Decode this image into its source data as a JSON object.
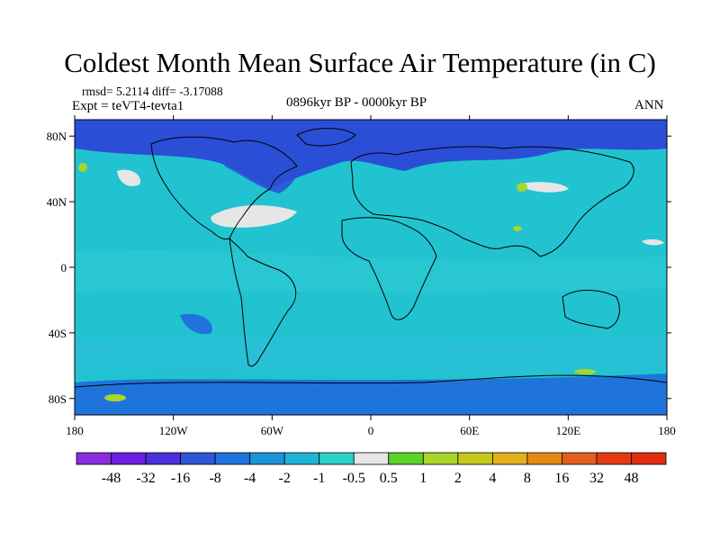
{
  "figure": {
    "title": "Coldest Month Mean Surface Air Temperature (in C)",
    "rmsd_line": "rmsd= 5.2114 diff= -3.17088",
    "experiment": "Expt = teVT4-tevta1",
    "period": "0896kyr BP - 0000kyr BP",
    "season": "ANN"
  },
  "map": {
    "projection": "cylindrical equidistant",
    "lon_range": [
      -180,
      180
    ],
    "lat_range": [
      -90,
      90
    ],
    "x_tick_labels": [
      "180",
      "120W",
      "60W",
      "0",
      "60E",
      "120E",
      "180"
    ],
    "y_tick_labels": [
      "80N",
      "40N",
      "0",
      "40S",
      "80S"
    ],
    "ocean_color": "#22c3d0",
    "cold_anomaly_color": "#2a4fd6",
    "near_zero_color": "#e6e6e6",
    "warm_anomaly_color": "#a8d62a"
  },
  "colorbar": {
    "labels": [
      "-48",
      "-32",
      "-16",
      "-8",
      "-4",
      "-2",
      "-1",
      "-0.5",
      "0.5",
      "1",
      "2",
      "4",
      "8",
      "16",
      "32",
      "48"
    ],
    "colors": [
      "#8a2be2",
      "#6a1ee0",
      "#4a30d8",
      "#2f56d6",
      "#1f74dc",
      "#1d93d8",
      "#20b3d8",
      "#2ad2c8",
      "#e6e6e6",
      "#5ad32a",
      "#a8d62a",
      "#c6c91c",
      "#e2b01a",
      "#e38a17",
      "#e2601c",
      "#e33a12",
      "#e02d12"
    ]
  }
}
